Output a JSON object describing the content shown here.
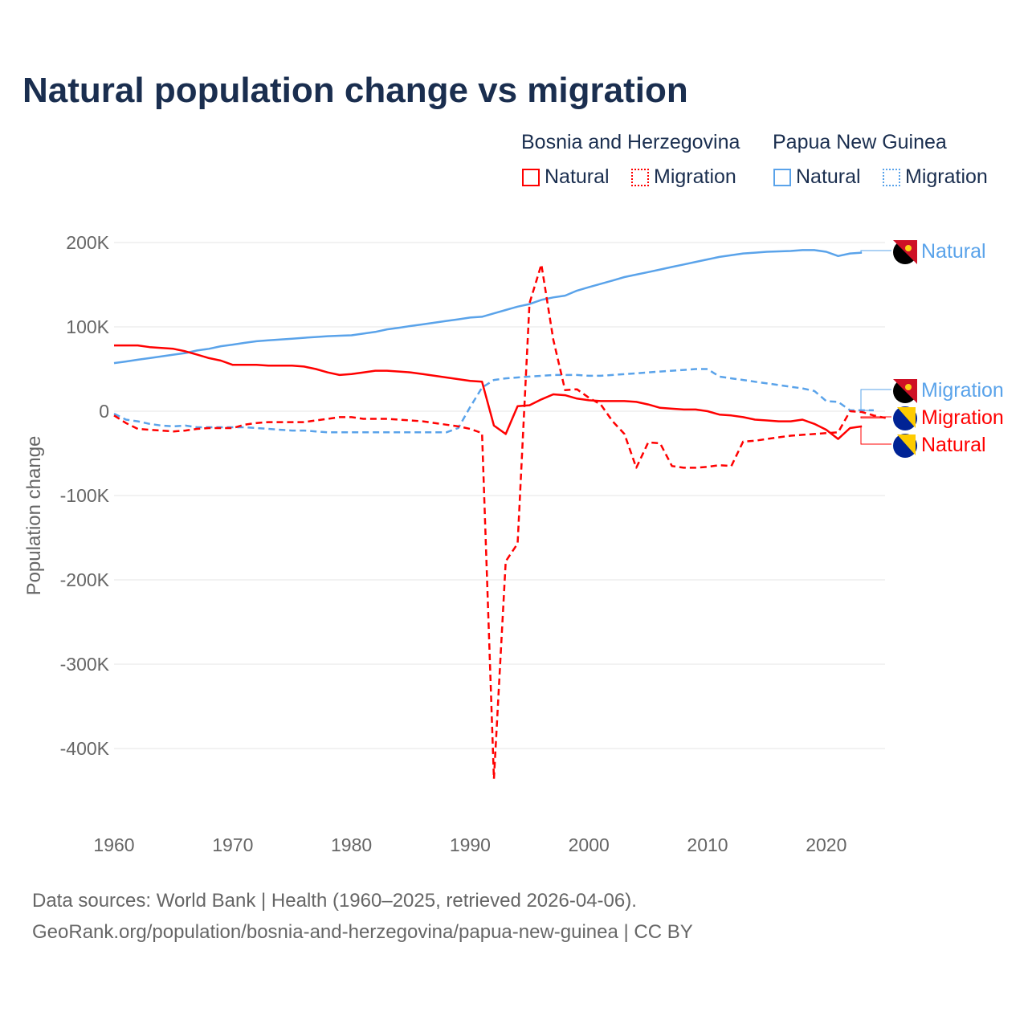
{
  "title": "Natural population change vs migration",
  "legend": {
    "groups": [
      {
        "name": "Bosnia and Herzegovina",
        "items": [
          "Natural",
          "Migration"
        ],
        "color": "#ff0000"
      },
      {
        "name": "Papua New Guinea",
        "items": [
          "Natural",
          "Migration"
        ],
        "color": "#5aa3ea"
      }
    ]
  },
  "footer": {
    "line1": "Data sources: World Bank | Health (1960–2025, retrieved 2026-04-06).",
    "line2": "GeoRank.org/population/bosnia-and-herzegovina/papua-new-guinea | CC BY"
  },
  "chart_data": {
    "type": "line",
    "title": "Natural population change vs migration",
    "xlabel": "",
    "ylabel": "Population change",
    "xlim": [
      1960,
      2025
    ],
    "ylim": [
      -450000,
      200000
    ],
    "x_ticks": [
      1960,
      1970,
      1980,
      1990,
      2000,
      2010,
      2020
    ],
    "x_tick_labels": [
      "1960",
      "1970",
      "1980",
      "1990",
      "2000",
      "2010",
      "2020"
    ],
    "y_ticks": [
      200000,
      100000,
      0,
      -100000,
      -200000,
      -300000,
      -400000
    ],
    "y_tick_labels": [
      "200K",
      "100K",
      "0",
      "-100K",
      "-200K",
      "-300K",
      "-400K"
    ],
    "grid": true,
    "legend_position": "top-right",
    "series": [
      {
        "name": "Natural",
        "country": "Papua New Guinea",
        "color": "#5aa3ea",
        "dash": "solid",
        "end_label": "Natural",
        "start_year": 1960,
        "values_k": [
          57,
          59,
          61,
          63,
          65,
          67,
          69,
          72,
          74,
          77,
          79,
          81,
          83,
          84,
          85,
          86,
          87,
          88,
          89,
          89.5,
          90,
          92,
          94,
          97,
          99,
          101,
          103,
          105,
          107,
          109,
          111,
          112,
          116,
          120,
          124,
          127,
          132,
          135,
          137,
          143,
          147,
          151,
          155,
          159,
          162,
          165,
          168,
          171,
          174,
          177,
          180,
          183,
          185,
          187,
          188,
          189,
          189.5,
          190,
          191,
          191,
          189,
          184,
          187,
          188
        ]
      },
      {
        "name": "Migration",
        "country": "Papua New Guinea",
        "color": "#5aa3ea",
        "dash": "dashed",
        "end_label": "Migration",
        "start_year": 1960,
        "values_k": [
          -3,
          -10,
          -12,
          -15,
          -17,
          -18,
          -17,
          -19,
          -19,
          -19,
          -19,
          -19,
          -20,
          -21,
          -22,
          -23,
          -23,
          -24,
          -25,
          -25,
          -25,
          -25,
          -25,
          -25,
          -25,
          -25,
          -25,
          -25,
          -25,
          -20,
          5,
          28,
          37,
          39,
          40,
          41,
          42,
          43,
          43,
          43,
          42,
          42,
          43,
          44,
          45,
          46,
          47,
          48,
          49,
          50,
          50,
          41,
          39,
          37,
          35,
          33,
          31,
          29,
          27,
          24,
          12,
          11,
          1,
          1,
          1
        ]
      },
      {
        "name": "Migration",
        "country": "Bosnia and Herzegovina",
        "color": "#ff0000",
        "dash": "dashed",
        "end_label": "Migration",
        "start_year": 1960,
        "values_k": [
          -5,
          -14,
          -21,
          -22,
          -23,
          -24,
          -23,
          -21,
          -20,
          -20,
          -20,
          -16,
          -14,
          -13,
          -13,
          -13,
          -13,
          -11,
          -9,
          -7,
          -7,
          -9,
          -9,
          -9,
          -10,
          -11,
          -12,
          -14,
          -16,
          -18,
          -21,
          -26,
          -436,
          -178,
          -157,
          128,
          174,
          85,
          25,
          26,
          16,
          8,
          -12,
          -27,
          -67,
          -37,
          -38,
          -65,
          -67,
          -67,
          -66,
          -64,
          -65,
          -36,
          -35,
          -33,
          -31,
          -29,
          -28,
          -27,
          -26,
          -25,
          0,
          -1,
          -5,
          -8
        ]
      },
      {
        "name": "Natural",
        "country": "Bosnia and Herzegovina",
        "color": "#ff0000",
        "dash": "solid",
        "end_label": "Natural",
        "start_year": 1960,
        "values_k": [
          78,
          78,
          78,
          76,
          75,
          74,
          71,
          67,
          63,
          60,
          55,
          55,
          55,
          54,
          54,
          54,
          53,
          50,
          46,
          43,
          44,
          46,
          48,
          48,
          47,
          46,
          44,
          42,
          40,
          38,
          36,
          35,
          -17,
          -27,
          6,
          7,
          14,
          20,
          19,
          15,
          13,
          12,
          12,
          12,
          11,
          8,
          4,
          3,
          2,
          2,
          0,
          -4,
          -5,
          -7,
          -10,
          -11,
          -12,
          -12,
          -10,
          -15,
          -22,
          -33,
          -20,
          -18
        ]
      }
    ]
  }
}
